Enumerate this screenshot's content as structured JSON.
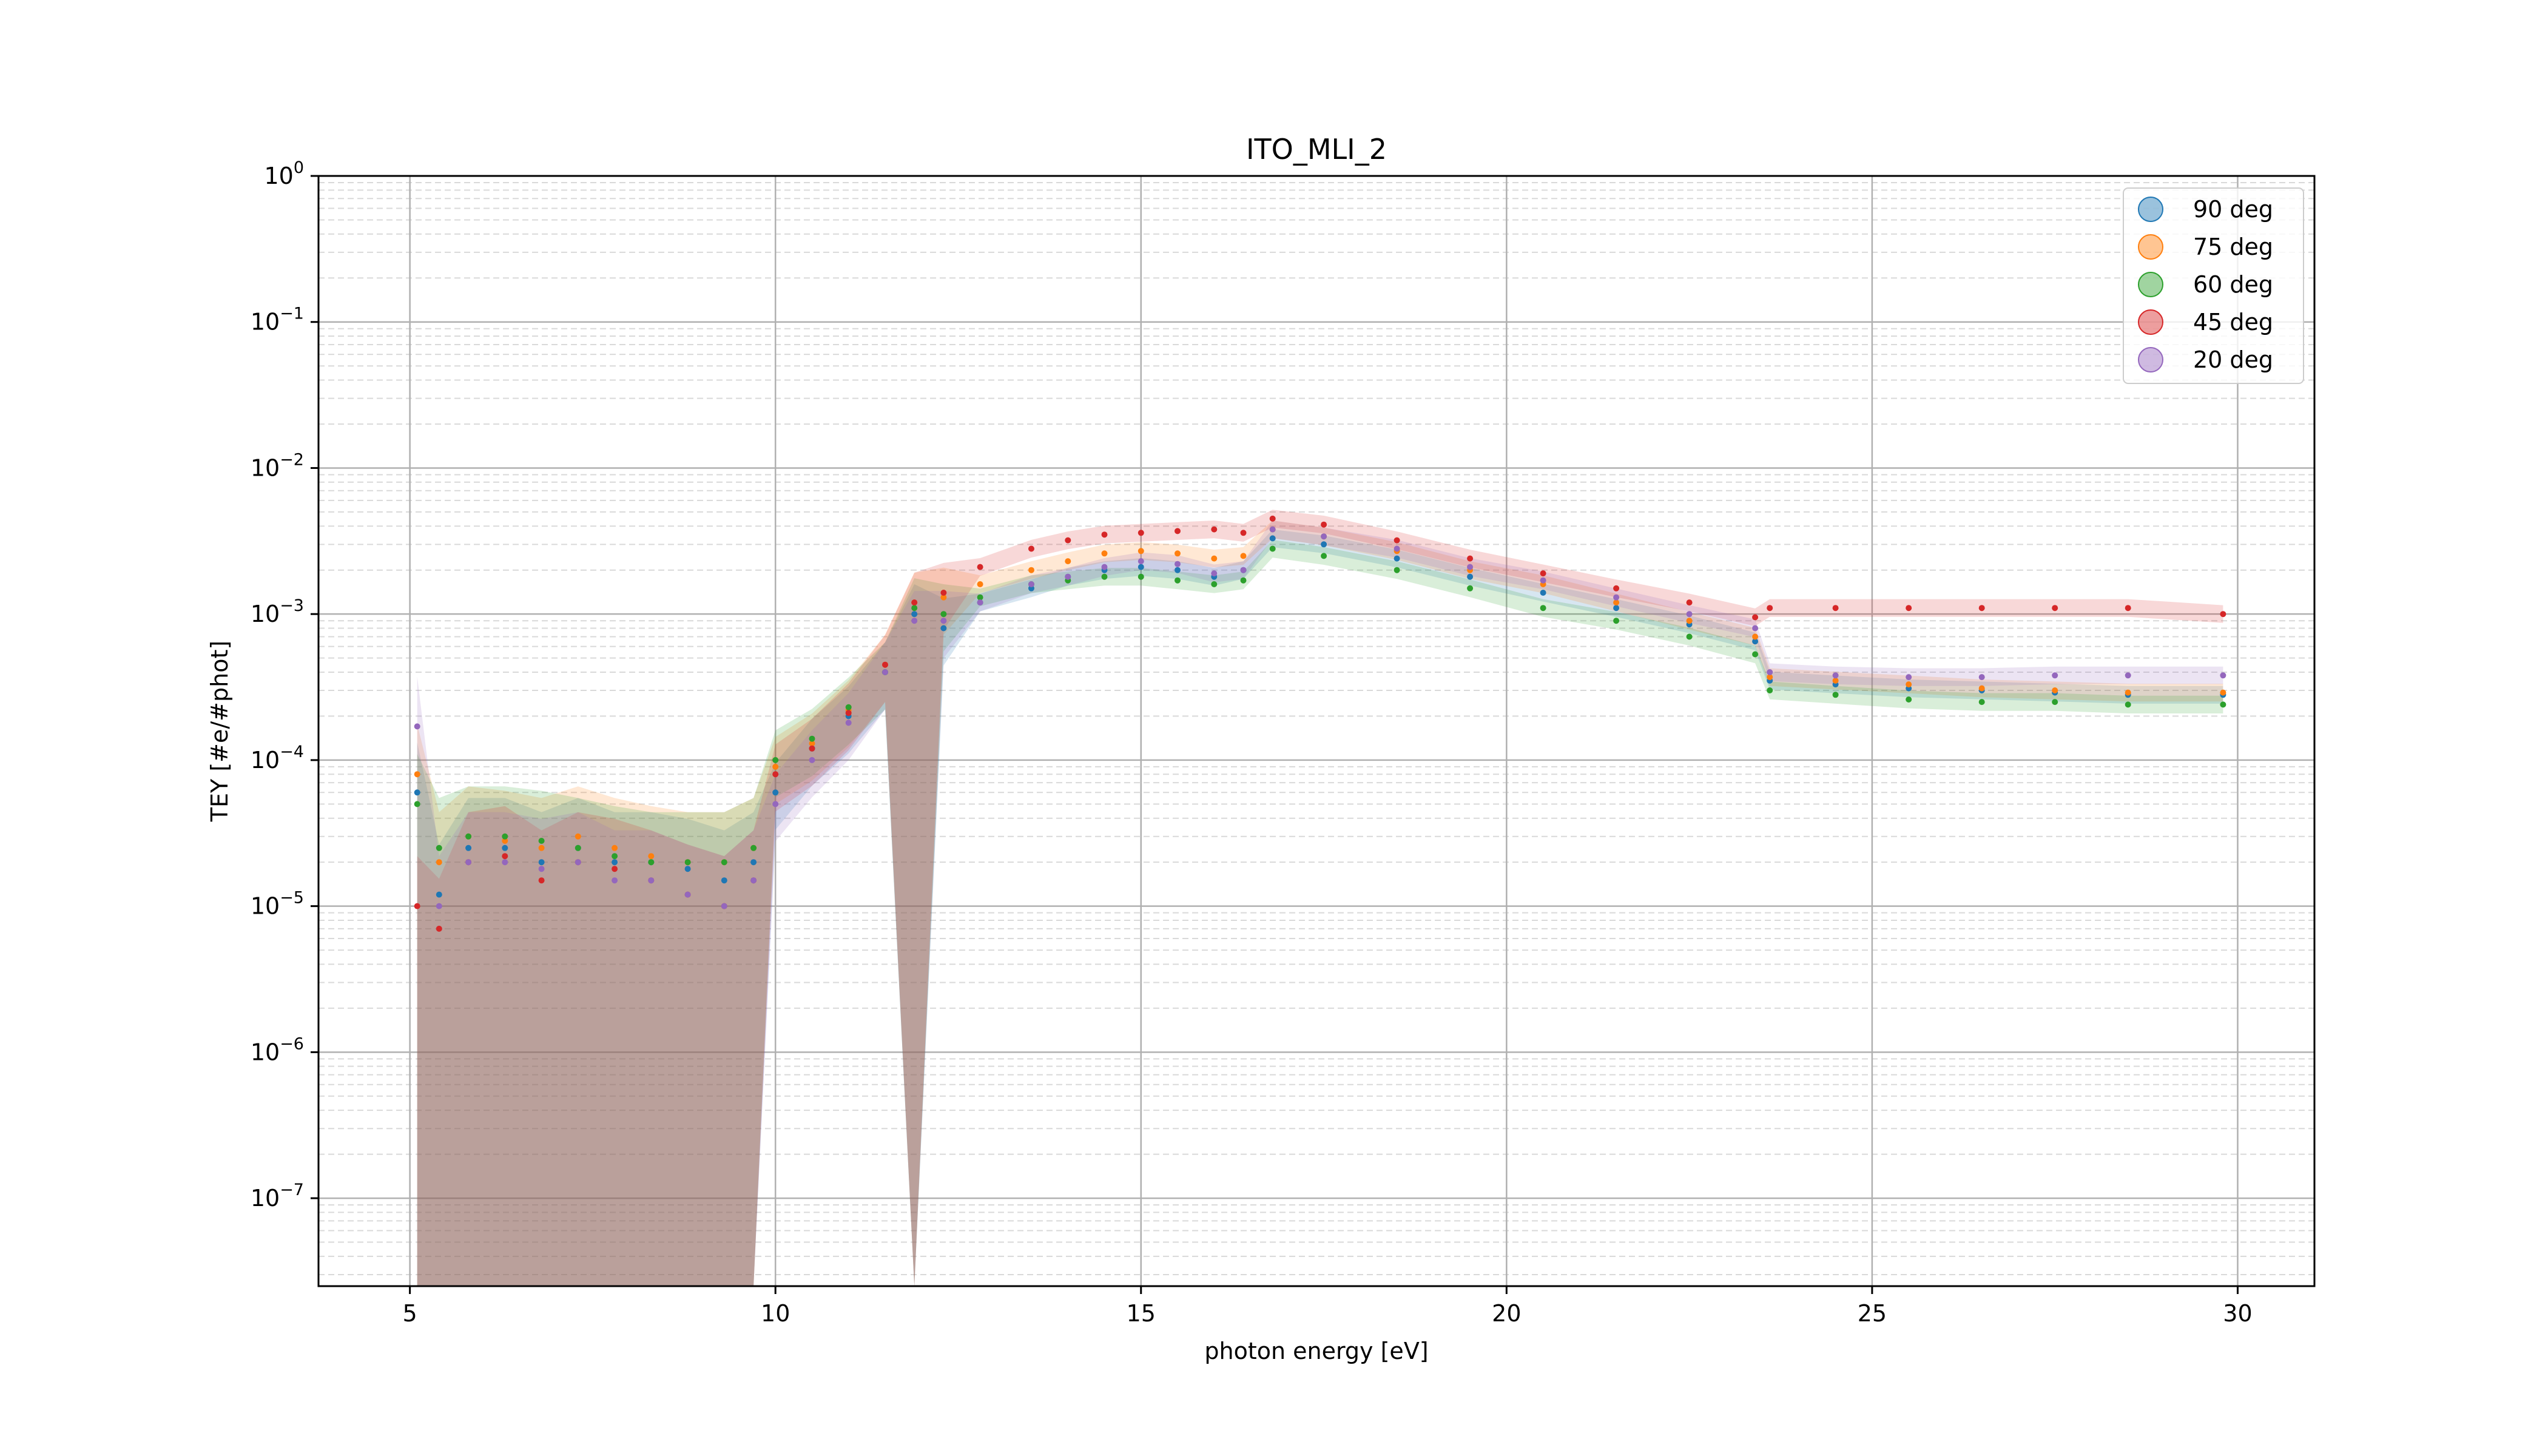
{
  "chart_data": {
    "type": "scatter",
    "title": "ITO_MLI_2",
    "xlabel": "photon energy [eV]",
    "ylabel": "TEY [#e/#phot]",
    "xlim": [
      3.75,
      31.05
    ],
    "ylim": [
      2.5e-08,
      1.0
    ],
    "yscale": "log",
    "grid": true,
    "legend_position": "top-right",
    "x_ticks": [
      {
        "value": 5,
        "label": "5"
      },
      {
        "value": 10,
        "label": "10"
      },
      {
        "value": 15,
        "label": "15"
      },
      {
        "value": 20,
        "label": "20"
      },
      {
        "value": 25,
        "label": "25"
      },
      {
        "value": 30,
        "label": "30"
      }
    ],
    "y_ticks": [
      {
        "value": 1e-07,
        "base": "10",
        "exp": "−7"
      },
      {
        "value": 1e-06,
        "base": "10",
        "exp": "−6"
      },
      {
        "value": 1e-05,
        "base": "10",
        "exp": "−5"
      },
      {
        "value": 0.0001,
        "base": "10",
        "exp": "−4"
      },
      {
        "value": 0.001,
        "base": "10",
        "exp": "−3"
      },
      {
        "value": 0.01,
        "base": "10",
        "exp": "−2"
      },
      {
        "value": 0.1,
        "base": "10",
        "exp": "−1"
      },
      {
        "value": 1,
        "base": "10",
        "exp": "0"
      }
    ],
    "series": [
      {
        "name": "90 deg",
        "color": "#1f77b4",
        "x": [
          5.1,
          5.4,
          5.8,
          6.3,
          6.8,
          7.3,
          7.8,
          8.3,
          8.8,
          9.3,
          9.7,
          10.0,
          10.5,
          11.0,
          11.5,
          11.9,
          12.3,
          12.8,
          13.5,
          14.0,
          14.5,
          15.0,
          15.5,
          16.0,
          16.4,
          16.8,
          17.5,
          18.5,
          19.5,
          20.5,
          21.5,
          22.5,
          23.4,
          23.6,
          24.5,
          25.5,
          26.5,
          27.5,
          28.5,
          29.8
        ],
        "y": [
          6e-05,
          1.2e-05,
          2.5e-05,
          2.5e-05,
          2e-05,
          2.5e-05,
          2e-05,
          2e-05,
          1.8e-05,
          1.5e-05,
          2e-05,
          6e-05,
          0.00012,
          0.0002,
          0.0004,
          0.001,
          0.0008,
          0.0012,
          0.0015,
          0.0018,
          0.002,
          0.0021,
          0.002,
          0.0018,
          0.002,
          0.0033,
          0.003,
          0.0024,
          0.0018,
          0.0014,
          0.0011,
          0.00085,
          0.00065,
          0.00035,
          0.00033,
          0.00031,
          0.0003,
          0.00029,
          0.00028,
          0.00028
        ]
      },
      {
        "name": "75 deg",
        "color": "#ff7f0e",
        "x": [
          5.1,
          5.4,
          5.8,
          6.3,
          6.8,
          7.3,
          7.8,
          8.3,
          8.8,
          9.3,
          9.7,
          10.0,
          10.5,
          11.0,
          11.5,
          11.9,
          12.3,
          12.8,
          13.5,
          14.0,
          14.5,
          15.0,
          15.5,
          16.0,
          16.4,
          16.8,
          17.5,
          18.5,
          19.5,
          20.5,
          21.5,
          22.5,
          23.4,
          23.6,
          24.5,
          25.5,
          26.5,
          27.5,
          28.5,
          29.8
        ],
        "y": [
          8e-05,
          2e-05,
          3e-05,
          2.8e-05,
          2.5e-05,
          3e-05,
          2.5e-05,
          2.2e-05,
          2e-05,
          2e-05,
          2.5e-05,
          9e-05,
          0.00013,
          0.00022,
          0.00045,
          0.0012,
          0.0013,
          0.0016,
          0.002,
          0.0023,
          0.0026,
          0.0027,
          0.0026,
          0.0024,
          0.0025,
          0.0038,
          0.0034,
          0.0027,
          0.002,
          0.0016,
          0.0012,
          0.0009,
          0.0007,
          0.00037,
          0.00035,
          0.00033,
          0.00031,
          0.0003,
          0.00029,
          0.00029
        ]
      },
      {
        "name": "60 deg",
        "color": "#2ca02c",
        "x": [
          5.1,
          5.4,
          5.8,
          6.3,
          6.8,
          7.3,
          7.8,
          8.3,
          8.8,
          9.3,
          9.7,
          10.0,
          10.5,
          11.0,
          11.5,
          11.9,
          12.3,
          12.8,
          13.5,
          14.0,
          14.5,
          15.0,
          15.5,
          16.0,
          16.4,
          16.8,
          17.5,
          18.5,
          19.5,
          20.5,
          21.5,
          22.5,
          23.4,
          23.6,
          24.5,
          25.5,
          26.5,
          27.5,
          28.5,
          29.8
        ],
        "y": [
          5e-05,
          2.5e-05,
          3e-05,
          3e-05,
          2.8e-05,
          2.5e-05,
          2.2e-05,
          2e-05,
          2e-05,
          2e-05,
          2.5e-05,
          0.0001,
          0.00014,
          0.00023,
          0.0004,
          0.0011,
          0.001,
          0.0013,
          0.0016,
          0.0017,
          0.0018,
          0.0018,
          0.0017,
          0.0016,
          0.0017,
          0.0028,
          0.0025,
          0.002,
          0.0015,
          0.0011,
          0.0009,
          0.0007,
          0.00053,
          0.0003,
          0.00028,
          0.00026,
          0.00025,
          0.00025,
          0.00024,
          0.00024
        ]
      },
      {
        "name": "45 deg",
        "color": "#d62728",
        "x": [
          5.1,
          5.4,
          5.8,
          6.3,
          6.8,
          7.3,
          7.8,
          8.3,
          8.8,
          9.3,
          9.7,
          10.0,
          10.5,
          11.0,
          11.5,
          11.9,
          12.3,
          12.8,
          13.5,
          14.0,
          14.5,
          15.0,
          15.5,
          16.0,
          16.4,
          16.8,
          17.5,
          18.5,
          19.5,
          20.5,
          21.5,
          22.5,
          23.4,
          23.6,
          24.5,
          25.5,
          26.5,
          27.5,
          28.5,
          29.8
        ],
        "y": [
          1e-05,
          7e-06,
          2e-05,
          2.2e-05,
          1.5e-05,
          2e-05,
          1.8e-05,
          1.5e-05,
          1.2e-05,
          1e-05,
          1.5e-05,
          8e-05,
          0.00012,
          0.00021,
          0.00045,
          0.0012,
          0.0014,
          0.0021,
          0.0028,
          0.0032,
          0.0035,
          0.0036,
          0.0037,
          0.0038,
          0.0036,
          0.0045,
          0.0041,
          0.0032,
          0.0024,
          0.0019,
          0.0015,
          0.0012,
          0.00095,
          0.0011,
          0.0011,
          0.0011,
          0.0011,
          0.0011,
          0.0011,
          0.001
        ]
      },
      {
        "name": "20 deg",
        "color": "#9467bd",
        "x": [
          5.1,
          5.4,
          5.8,
          6.3,
          6.8,
          7.3,
          7.8,
          8.3,
          8.8,
          9.3,
          9.7,
          10.0,
          10.5,
          11.0,
          11.5,
          11.9,
          12.3,
          12.8,
          13.5,
          14.0,
          14.5,
          15.0,
          15.5,
          16.0,
          16.4,
          16.8,
          17.5,
          18.5,
          19.5,
          20.5,
          21.5,
          22.5,
          23.4,
          23.6,
          24.5,
          25.5,
          26.5,
          27.5,
          28.5,
          29.8
        ],
        "y": [
          0.00017,
          1e-05,
          2e-05,
          2e-05,
          1.8e-05,
          2e-05,
          1.5e-05,
          1.5e-05,
          1.2e-05,
          1e-05,
          1.5e-05,
          5e-05,
          0.0001,
          0.00018,
          0.0004,
          0.0009,
          0.0009,
          0.0012,
          0.0016,
          0.0018,
          0.0021,
          0.0023,
          0.0022,
          0.0019,
          0.002,
          0.0038,
          0.0034,
          0.0028,
          0.0021,
          0.0017,
          0.0013,
          0.001,
          0.0008,
          0.0004,
          0.00038,
          0.00037,
          0.00037,
          0.00038,
          0.00038,
          0.00038
        ]
      }
    ]
  }
}
